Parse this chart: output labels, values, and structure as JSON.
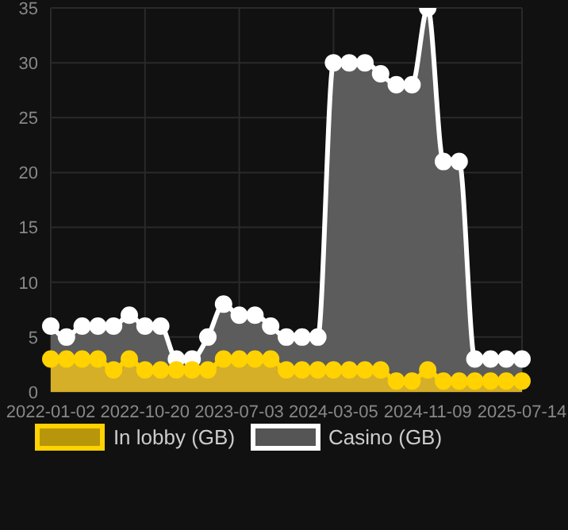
{
  "chart_data": {
    "type": "area",
    "categories": [
      "2022-01-02",
      null,
      null,
      null,
      null,
      null,
      "2022-10-20",
      null,
      null,
      null,
      null,
      null,
      "2023-07-03",
      null,
      null,
      null,
      null,
      null,
      "2024-03-05",
      null,
      null,
      null,
      null,
      null,
      "2024-11-09",
      null,
      null,
      null,
      null,
      null,
      "2025-07-14"
    ],
    "series": [
      {
        "name": "In lobby (GB)",
        "color": "#ffd200",
        "values": [
          3,
          3,
          3,
          3,
          2,
          3,
          2,
          2,
          2,
          2,
          2,
          3,
          3,
          3,
          3,
          2,
          2,
          2,
          2,
          2,
          2,
          2,
          1,
          1,
          2,
          1,
          1,
          1,
          1,
          1,
          1
        ]
      },
      {
        "name": "Casino (GB)",
        "color": "#ffffff",
        "values": [
          6,
          5,
          6,
          6,
          6,
          7,
          6,
          6,
          3,
          3,
          5,
          8,
          7,
          7,
          6,
          5,
          5,
          5,
          30,
          30,
          30,
          29,
          28,
          28,
          35,
          21,
          21,
          3,
          3,
          3,
          3
        ]
      }
    ],
    "ylim": [
      0,
      35
    ],
    "yticks": [
      0,
      5,
      10,
      15,
      20,
      25,
      30,
      35
    ],
    "grid": true,
    "legend": "bottom",
    "marker": "circle"
  }
}
